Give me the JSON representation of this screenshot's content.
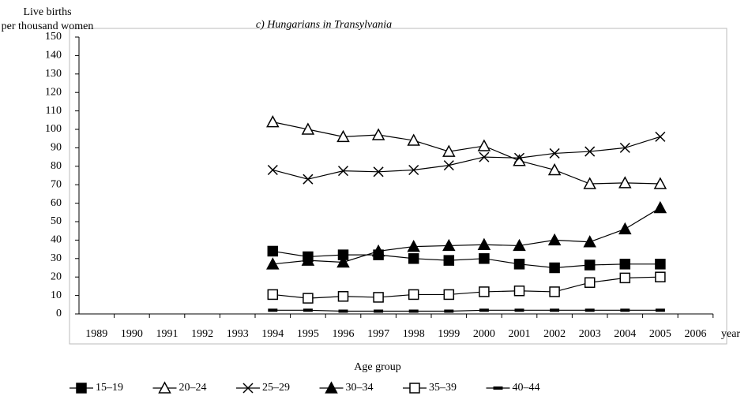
{
  "chart_data": {
    "type": "line",
    "title": "c) Hungarians in Transylvania",
    "y_label": [
      "Live births",
      "per thousand women"
    ],
    "x_label": "year",
    "legend_title": "Age group",
    "categories": [
      "1989",
      "1990",
      "1991",
      "1992",
      "1993",
      "1994",
      "1995",
      "1996",
      "1997",
      "1998",
      "1999",
      "2000",
      "2001",
      "2002",
      "2003",
      "2004",
      "2005",
      "2006"
    ],
    "ylim": [
      0,
      150
    ],
    "yticks": [
      0,
      10,
      20,
      30,
      40,
      50,
      60,
      70,
      80,
      90,
      100,
      110,
      120,
      130,
      140,
      150
    ],
    "grid": false,
    "legend": "bottom",
    "series": [
      {
        "name": "15–19",
        "color": "#000000",
        "marker": "square-filled",
        "values": [
          null,
          null,
          null,
          null,
          null,
          34,
          31,
          32,
          32,
          30,
          29,
          30,
          27,
          25,
          26.5,
          27,
          27,
          null
        ]
      },
      {
        "name": "20–24",
        "color": "#000000",
        "marker": "triangle-open",
        "values": [
          null,
          null,
          null,
          null,
          null,
          104,
          100,
          96,
          97,
          94,
          88,
          91,
          83,
          78,
          70.5,
          71,
          70.5,
          null
        ]
      },
      {
        "name": "25–29",
        "color": "#000000",
        "marker": "cross",
        "values": [
          null,
          null,
          null,
          null,
          null,
          78,
          73,
          77.5,
          77,
          78,
          80.5,
          85,
          84.5,
          87,
          88,
          90,
          96,
          null
        ]
      },
      {
        "name": "30–34",
        "color": "#000000",
        "marker": "triangle-filled",
        "values": [
          null,
          null,
          null,
          null,
          null,
          27,
          29,
          28,
          34,
          36.5,
          37,
          37.5,
          37,
          40,
          39,
          46,
          57.5,
          null
        ]
      },
      {
        "name": "35–39",
        "color": "#000000",
        "marker": "square-open",
        "values": [
          null,
          null,
          null,
          null,
          null,
          10.5,
          8.5,
          9.5,
          9,
          10.5,
          10.5,
          12,
          12.5,
          12,
          17,
          19.5,
          20,
          null
        ]
      },
      {
        "name": "40–44",
        "color": "#000000",
        "marker": "dash",
        "values": [
          null,
          null,
          null,
          null,
          null,
          2,
          2,
          1.5,
          1.5,
          1.5,
          1.5,
          2,
          2,
          2,
          2,
          2,
          2,
          null
        ]
      }
    ]
  }
}
